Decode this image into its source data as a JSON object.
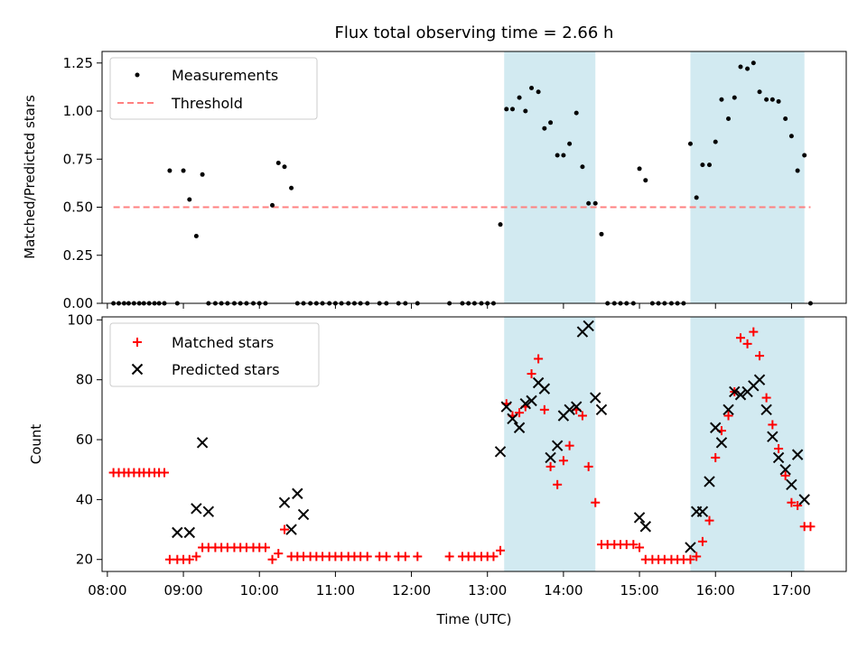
{
  "title": "Flux total observing time = 2.66 h",
  "colors": {
    "measurement": "#000000",
    "threshold": "#ff8080",
    "matched": "#ff0000",
    "predicted": "#000000",
    "shade": "#add8e6"
  },
  "chart_data": [
    {
      "type": "scatter",
      "ylabel": "Matched/Predicted stars",
      "xlim": [
        7.93,
        17.72
      ],
      "ylim": [
        0,
        1.31
      ],
      "yticks": [
        "0.00",
        "0.25",
        "0.50",
        "0.75",
        "1.00",
        "1.25"
      ],
      "grid": false,
      "legend_position": "top-left",
      "shaded_intervals": [
        [
          13.22,
          14.42
        ],
        [
          15.67,
          17.17
        ]
      ],
      "threshold": {
        "name": "Threshold",
        "y": 0.5,
        "x": [
          8.08,
          17.25
        ]
      },
      "series": [
        {
          "name": "Measurements",
          "x": [
            8.08,
            8.15,
            8.22,
            8.28,
            8.35,
            8.42,
            8.48,
            8.55,
            8.62,
            8.68,
            8.75,
            8.82,
            8.92,
            9.0,
            9.08,
            9.17,
            9.25,
            9.33,
            9.42,
            9.5,
            9.58,
            9.67,
            9.75,
            9.83,
            9.92,
            10.0,
            10.08,
            10.17,
            10.25,
            10.33,
            10.42,
            10.5,
            10.58,
            10.67,
            10.75,
            10.83,
            10.92,
            11.0,
            11.08,
            11.17,
            11.25,
            11.33,
            11.42,
            11.58,
            11.67,
            11.83,
            11.92,
            12.08,
            12.5,
            12.67,
            12.75,
            12.83,
            12.92,
            13.0,
            13.08,
            13.17,
            13.25,
            13.33,
            13.42,
            13.5,
            13.58,
            13.67,
            13.75,
            13.83,
            13.92,
            14.0,
            14.08,
            14.17,
            14.25,
            14.33,
            14.42,
            14.5,
            14.58,
            14.67,
            14.75,
            14.83,
            14.92,
            15.0,
            15.08,
            15.17,
            15.25,
            15.33,
            15.42,
            15.5,
            15.58,
            15.67,
            15.75,
            15.83,
            15.92,
            16.0,
            16.08,
            16.17,
            16.25,
            16.33,
            16.42,
            16.5,
            16.58,
            16.67,
            16.75,
            16.83,
            16.92,
            17.0,
            17.08,
            17.17,
            17.25
          ],
          "y": [
            0,
            0,
            0,
            0,
            0,
            0,
            0,
            0,
            0,
            0,
            0,
            0.69,
            0,
            0.69,
            0.54,
            0.35,
            0.67,
            0,
            0,
            0,
            0,
            0,
            0,
            0,
            0,
            0,
            0,
            0.51,
            0.73,
            0.71,
            0.6,
            0,
            0,
            0,
            0,
            0,
            0,
            0,
            0,
            0,
            0,
            0,
            0,
            0,
            0,
            0,
            0,
            0,
            0,
            0,
            0,
            0,
            0,
            0,
            0,
            0.41,
            1.01,
            1.01,
            1.07,
            1.0,
            1.12,
            1.1,
            0.91,
            0.94,
            0.77,
            0.77,
            0.83,
            0.99,
            0.71,
            0.52,
            0.52,
            0.36,
            0,
            0,
            0,
            0,
            0,
            0.7,
            0.64,
            0,
            0,
            0,
            0,
            0,
            0,
            0.83,
            0.55,
            0.72,
            0.72,
            0.84,
            1.06,
            0.96,
            1.07,
            1.23,
            1.22,
            1.25,
            1.1,
            1.06,
            1.06,
            1.05,
            0.96,
            0.87,
            0.69,
            0.77,
            0
          ]
        }
      ]
    },
    {
      "type": "scatter",
      "xlabel": "Time (UTC)",
      "ylabel": "Count",
      "xlim": [
        7.93,
        17.72
      ],
      "ylim": [
        16,
        101
      ],
      "xticks": [
        "08:00",
        "09:00",
        "10:00",
        "11:00",
        "12:00",
        "13:00",
        "14:00",
        "15:00",
        "16:00",
        "17:00"
      ],
      "yticks": [
        "20",
        "40",
        "60",
        "80",
        "100"
      ],
      "grid": false,
      "legend_position": "top-left",
      "shaded_intervals": [
        [
          13.22,
          14.42
        ],
        [
          15.67,
          17.17
        ]
      ],
      "series": [
        {
          "name": "Matched stars",
          "x": [
            8.08,
            8.15,
            8.22,
            8.28,
            8.35,
            8.42,
            8.48,
            8.55,
            8.62,
            8.68,
            8.75,
            8.82,
            8.92,
            9.0,
            9.08,
            9.17,
            9.25,
            9.33,
            9.42,
            9.5,
            9.58,
            9.67,
            9.75,
            9.83,
            9.92,
            10.0,
            10.08,
            10.17,
            10.25,
            10.33,
            10.42,
            10.5,
            10.58,
            10.67,
            10.75,
            10.83,
            10.92,
            11.0,
            11.08,
            11.17,
            11.25,
            11.33,
            11.42,
            11.58,
            11.67,
            11.83,
            11.92,
            12.08,
            12.5,
            12.67,
            12.75,
            12.83,
            12.92,
            13.0,
            13.08,
            13.17,
            13.25,
            13.33,
            13.42,
            13.5,
            13.58,
            13.67,
            13.75,
            13.83,
            13.92,
            14.0,
            14.08,
            14.17,
            14.25,
            14.33,
            14.42,
            14.5,
            14.58,
            14.67,
            14.75,
            14.83,
            14.92,
            15.0,
            15.08,
            15.17,
            15.25,
            15.33,
            15.42,
            15.5,
            15.58,
            15.67,
            15.75,
            15.83,
            15.92,
            16.0,
            16.08,
            16.17,
            16.25,
            16.33,
            16.42,
            16.5,
            16.58,
            16.67,
            16.75,
            16.83,
            16.92,
            17.0,
            17.08,
            17.17,
            17.25
          ],
          "y": [
            49,
            49,
            49,
            49,
            49,
            49,
            49,
            49,
            49,
            49,
            49,
            20,
            20,
            20,
            20,
            21,
            24,
            24,
            24,
            24,
            24,
            24,
            24,
            24,
            24,
            24,
            24,
            20,
            22,
            30,
            21,
            21,
            21,
            21,
            21,
            21,
            21,
            21,
            21,
            21,
            21,
            21,
            21,
            21,
            21,
            21,
            21,
            21,
            21,
            21,
            21,
            21,
            21,
            21,
            21,
            23,
            72,
            68,
            69,
            71,
            82,
            87,
            70,
            51,
            45,
            53,
            58,
            70,
            68,
            51,
            39,
            25,
            25,
            25,
            25,
            25,
            25,
            24,
            20,
            20,
            20,
            20,
            20,
            20,
            20,
            20,
            21,
            26,
            33,
            54,
            63,
            68,
            76,
            94,
            92,
            96,
            88,
            74,
            65,
            57,
            48,
            39,
            38,
            31,
            31
          ]
        },
        {
          "name": "Predicted stars",
          "x": [
            8.92,
            9.08,
            9.17,
            9.25,
            9.33,
            10.42,
            10.5,
            10.33,
            10.58,
            13.17,
            13.25,
            13.33,
            13.42,
            13.5,
            13.58,
            13.67,
            13.75,
            13.83,
            13.92,
            14.0,
            14.08,
            14.17,
            14.25,
            14.33,
            14.42,
            14.5,
            15.0,
            15.08,
            15.67,
            15.75,
            15.83,
            15.92,
            16.0,
            16.08,
            16.17,
            16.25,
            16.33,
            16.42,
            16.5,
            16.58,
            16.67,
            16.75,
            16.83,
            16.92,
            17.0,
            17.08,
            17.17
          ],
          "y": [
            29,
            29,
            37,
            59,
            36,
            30,
            42,
            39,
            35,
            56,
            71,
            67,
            64,
            72,
            73,
            79,
            77,
            54,
            58,
            68,
            70,
            71,
            96,
            98,
            74,
            70,
            34,
            31,
            24,
            36,
            36,
            46,
            64,
            59,
            70,
            76,
            75,
            76,
            78,
            80,
            70,
            61,
            54,
            50,
            45,
            55,
            40
          ]
        }
      ]
    }
  ]
}
